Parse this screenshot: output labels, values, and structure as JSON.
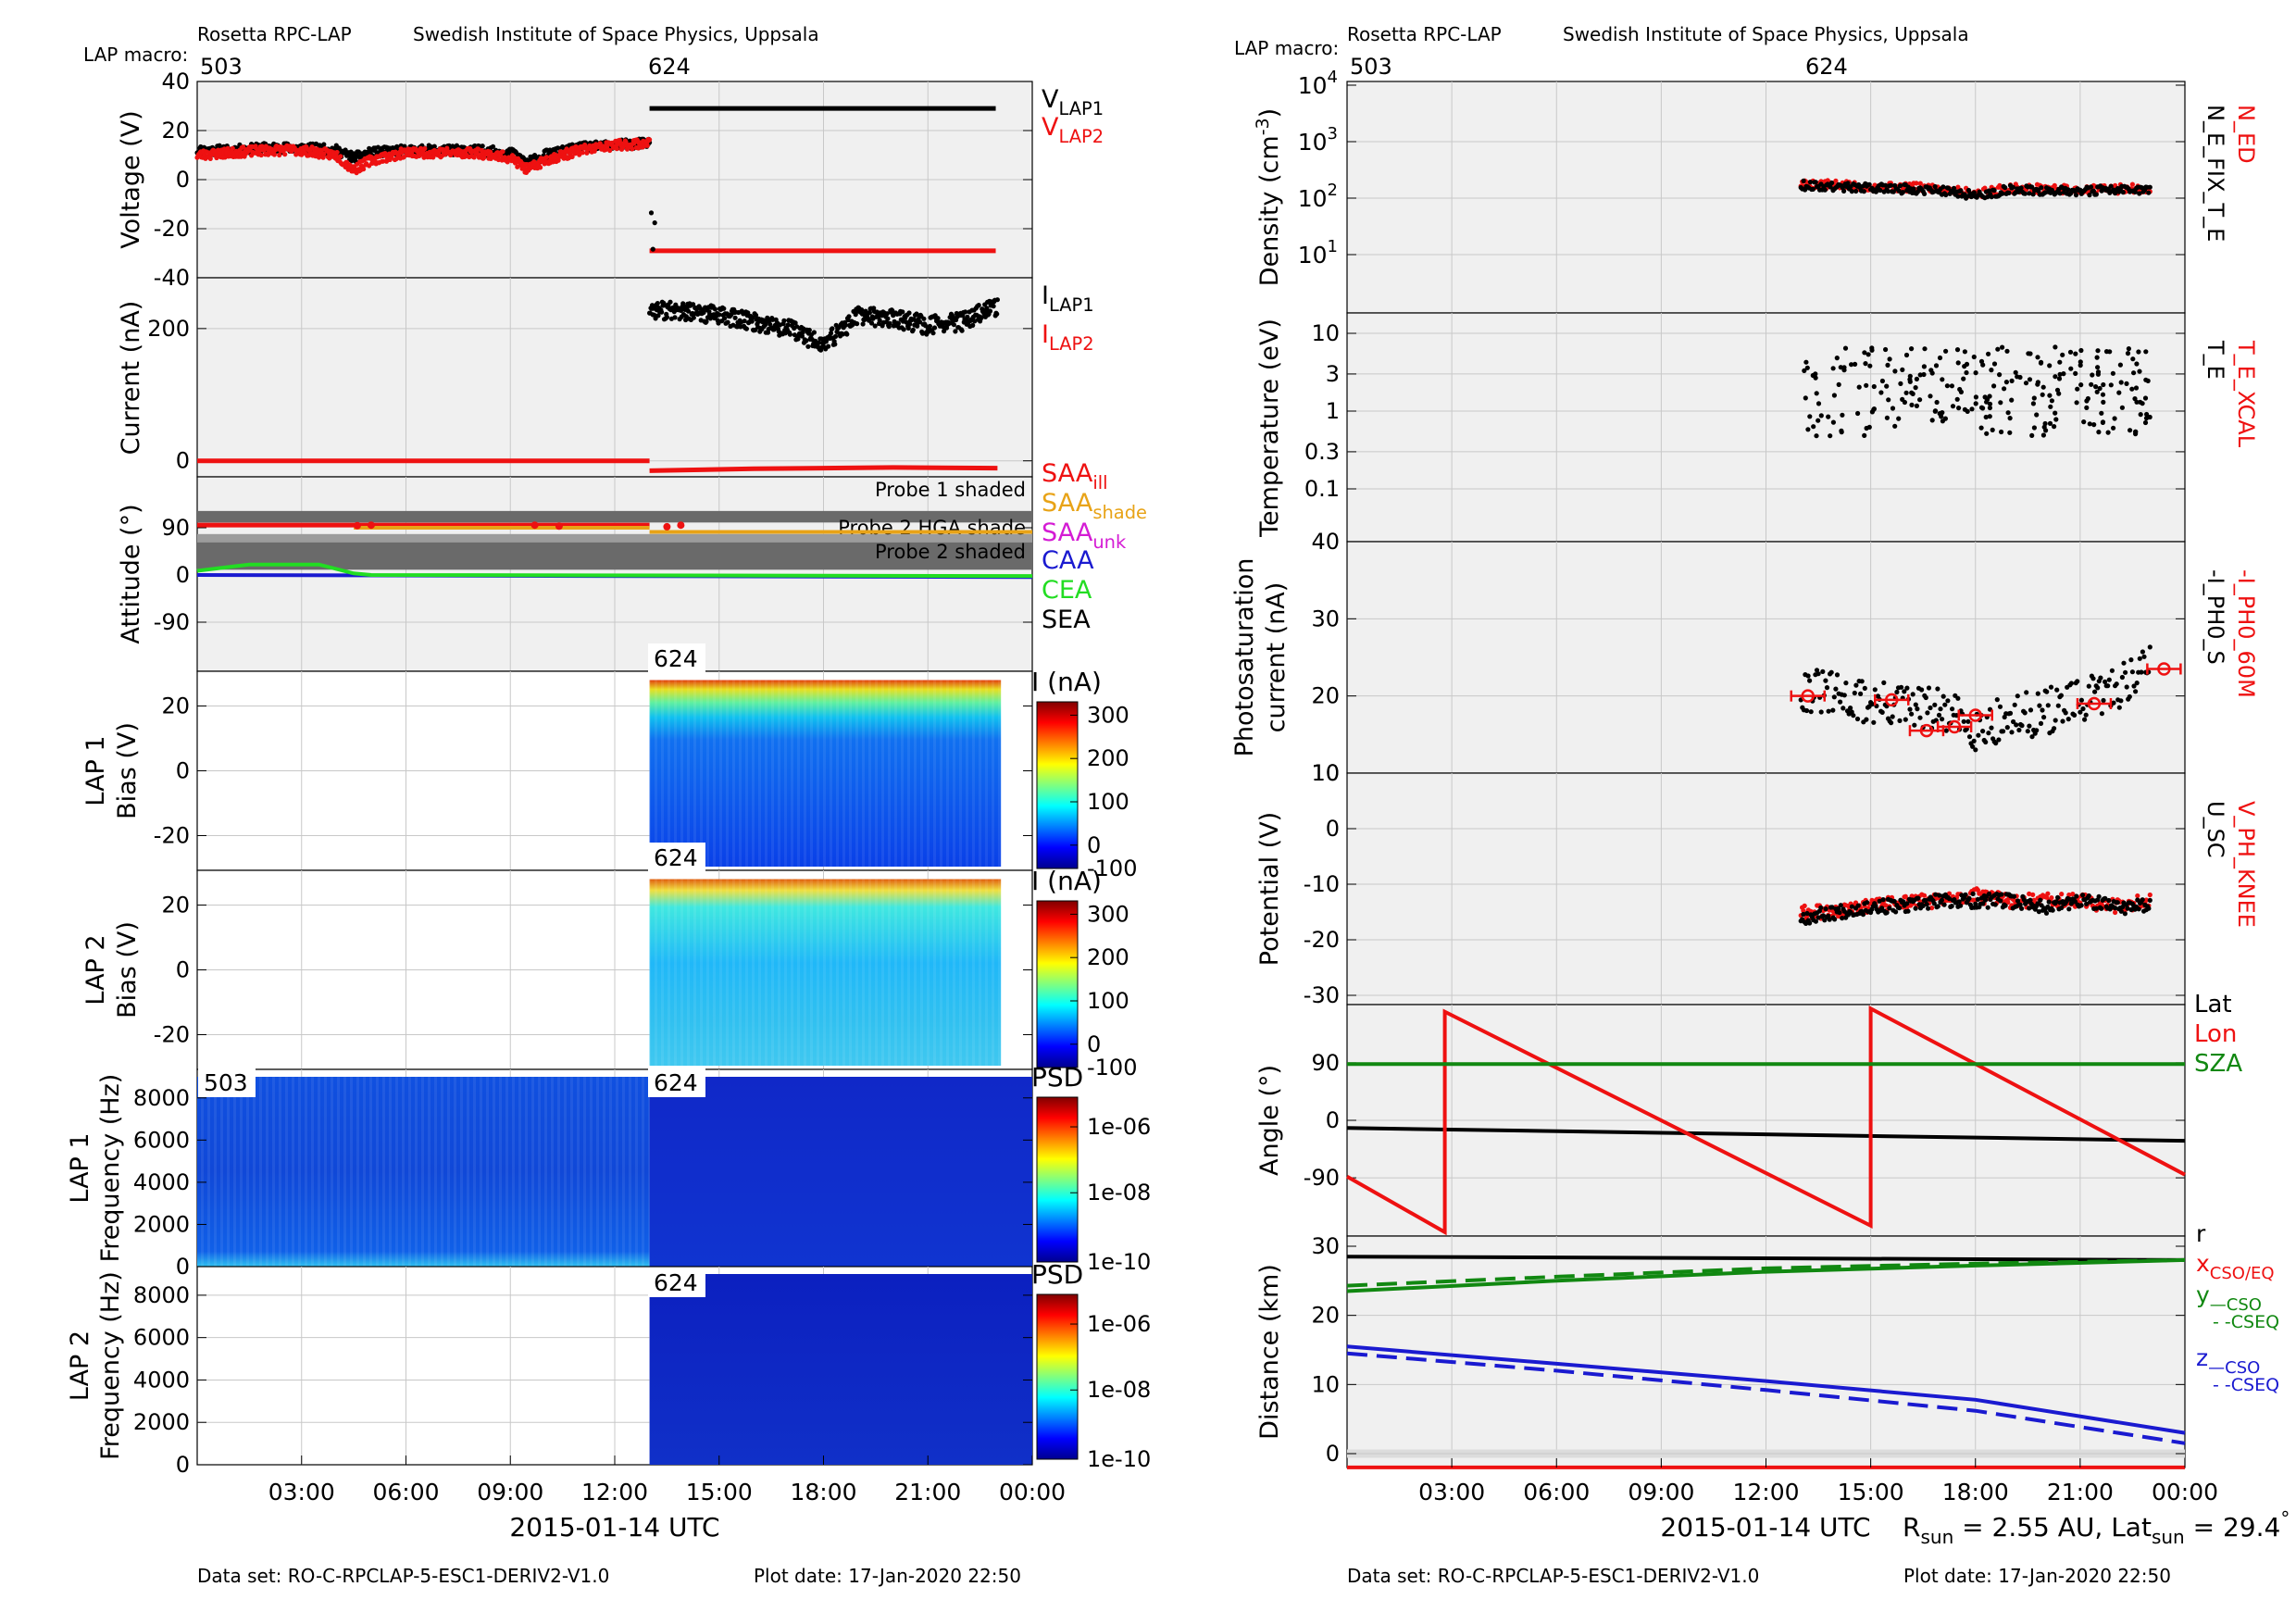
{
  "colors": {
    "black": "#000000",
    "red": "#ee1111",
    "orange": "#e8a317",
    "magenta": "#d41bd4",
    "blue": "#1a1ad0",
    "green": "#118811",
    "lime": "#22dd22",
    "panel": "#f0f0f0",
    "shade": "#6a6a6a",
    "shade_light": "#9c9c9c",
    "grid": "#c8c8c8"
  },
  "left": {
    "header": {
      "instrument": "Rosetta RPC-LAP",
      "institute": "Swedish Institute of Space Physics, Uppsala",
      "macro_label": "LAP macro:",
      "macro1": "503",
      "macro2": "624"
    },
    "xaxis": {
      "ticks": [
        "03:00",
        "06:00",
        "09:00",
        "12:00",
        "15:00",
        "18:00",
        "21:00",
        "00:00"
      ],
      "label": "2015-01-14 UTC"
    },
    "footer": {
      "dataset": "Data set: RO-C-RPCLAP-5-ESC1-DERIV2-V1.0",
      "plotdate": "Plot date: 17-Jan-2020 22:50"
    },
    "voltage": {
      "ylabel": "Voltage (V)",
      "ticks": [
        "40",
        "20",
        "0",
        "-20",
        "-40"
      ],
      "legend": [
        {
          "main": "V",
          "sub": "LAP1",
          "color": "#000000"
        },
        {
          "main": "V",
          "sub": "LAP2",
          "color": "#ee1111"
        }
      ]
    },
    "current": {
      "ylabel": "Current (nA)",
      "ticks": [
        "200",
        "0"
      ],
      "legend": [
        {
          "main": "I",
          "sub": "LAP1",
          "color": "#000000"
        },
        {
          "main": "I",
          "sub": "LAP2",
          "color": "#ee1111"
        }
      ]
    },
    "attitude": {
      "ylabel": "Attitude (°)",
      "ticks": [
        "90",
        "0",
        "-90"
      ],
      "bands": [
        "Probe 1 shaded",
        "Probe 2 HGA shade",
        "Probe 2 shaded"
      ],
      "legend": [
        {
          "main": "SAA",
          "sub": "ill",
          "color": "#ee1111"
        },
        {
          "main": "SAA",
          "sub": "shade",
          "color": "#e8a317"
        },
        {
          "main": "SAA",
          "sub": "unk",
          "color": "#d41bd4"
        },
        {
          "main": "CAA",
          "sub": "",
          "color": "#1a1ad0"
        },
        {
          "main": "CEA",
          "sub": "",
          "color": "#22dd22"
        },
        {
          "main": "SEA",
          "sub": "",
          "color": "#000000"
        }
      ]
    },
    "bias1": {
      "ylabel1": "LAP 1",
      "ylabel2": "Bias (V)",
      "ticks": [
        "20",
        "0",
        "-20"
      ],
      "macro": "624",
      "cbar_label": "I (nA)",
      "cbar_ticks": [
        "300",
        "200",
        "100",
        "0",
        "-100"
      ]
    },
    "bias2": {
      "ylabel1": "LAP 2",
      "ylabel2": "Bias (V)",
      "ticks": [
        "20",
        "0",
        "-20"
      ],
      "macro": "624",
      "cbar_label": "I (nA)",
      "cbar_ticks": [
        "300",
        "200",
        "100",
        "0",
        "-100"
      ]
    },
    "freq1": {
      "ylabel1": "LAP 1",
      "ylabel2": "Frequency (Hz)",
      "ticks": [
        "8000",
        "6000",
        "4000",
        "2000",
        "0"
      ],
      "macro_a": "503",
      "macro_b": "624",
      "cbar_label": "PSD",
      "cbar_ticks": [
        "1e-06",
        "1e-08",
        "1e-10"
      ]
    },
    "freq2": {
      "ylabel1": "LAP 2",
      "ylabel2": "Frequency (Hz)",
      "ticks": [
        "8000",
        "6000",
        "4000",
        "2000",
        "0"
      ],
      "macro": "624",
      "cbar_label": "PSD",
      "cbar_ticks": [
        "1e-06",
        "1e-08",
        "1e-10"
      ]
    }
  },
  "right": {
    "header": {
      "instrument": "Rosetta RPC-LAP",
      "institute": "Swedish Institute of Space Physics, Uppsala",
      "macro_label": "LAP macro:",
      "macro1": "503",
      "macro2": "624"
    },
    "xaxis": {
      "ticks": [
        "03:00",
        "06:00",
        "09:00",
        "12:00",
        "15:00",
        "18:00",
        "21:00",
        "00:00"
      ],
      "label": "2015-01-14 UTC"
    },
    "footer": {
      "dataset": "Data set: RO-C-RPCLAP-5-ESC1-DERIV2-V1.0",
      "plotdate": "Plot date: 17-Jan-2020 22:50"
    },
    "rsun": {
      "r": "R",
      "r_sub": "sun",
      "r_val": " = 2.55 AU, Lat",
      "lat_sub": "sun",
      "lat_val": " = 29.4",
      "deg": "°"
    },
    "density": {
      "ylabel_pre": "Density (cm",
      "ylabel_sup": "-3",
      "ylabel_post": ")",
      "ticks": [
        {
          "b": "10",
          "e": "4"
        },
        {
          "b": "10",
          "e": "3"
        },
        {
          "b": "10",
          "e": "2"
        },
        {
          "b": "10",
          "e": "1"
        }
      ],
      "legend_red": "N_ED",
      "legend_black": "N_E_FIX_T_E"
    },
    "temperature": {
      "ylabel": "Temperature (eV)",
      "ticks": [
        "10",
        "3",
        "1",
        "0.3",
        "0.1"
      ],
      "legend_red": "T_E_XCAL",
      "legend_black": "T_E"
    },
    "photo": {
      "ylabel1": "Photosaturation",
      "ylabel2": "current (nA)",
      "ticks": [
        "40",
        "30",
        "20",
        "10"
      ],
      "legend_red": "-I_PH0_60M",
      "legend_black": "-I_PH0_S"
    },
    "potential": {
      "ylabel": "Potential (V)",
      "ticks": [
        "10",
        "0",
        "-10",
        "-20",
        "-30"
      ],
      "legend_red": "V_PH_KNEE",
      "legend_black": "U_SC"
    },
    "angle": {
      "ylabel": "Angle (°)",
      "ticks": [
        "90",
        "0",
        "-90"
      ],
      "legend": [
        {
          "text": "Lat",
          "color": "#000000"
        },
        {
          "text": "Lon",
          "color": "#ee1111"
        },
        {
          "text": "SZA",
          "color": "#118811"
        }
      ]
    },
    "distance": {
      "ylabel": "Distance (km)",
      "ticks": [
        "30",
        "20",
        "10",
        "0"
      ],
      "legend": [
        {
          "main": "r",
          "sub": "",
          "color": "#000000"
        },
        {
          "main": "x",
          "sub": "CSO/EQ",
          "color": "#ee1111"
        },
        {
          "main": "y",
          "sub": "—CSO",
          "color": "#118811"
        },
        {
          "main": "",
          "sub": "- -CSEQ",
          "color": "#118811"
        },
        {
          "main": "z",
          "sub": "—CSO",
          "color": "#1a1ad0"
        },
        {
          "main": "",
          "sub": "- -CSEQ",
          "color": "#1a1ad0"
        }
      ]
    }
  },
  "chart_data": [
    {
      "type": "line",
      "panel": "Voltage",
      "x_range_hours": [
        0,
        24
      ],
      "ylim": [
        -40,
        40
      ],
      "series": [
        {
          "name": "V_LAP1",
          "segments": [
            {
              "x": [
                0,
                1,
                2,
                3,
                4,
                4.5,
                5,
                6,
                7,
                8,
                9,
                9.5,
                10,
                11,
                12,
                13
              ],
              "y": [
                12,
                12,
                13,
                13,
                12,
                9,
                11,
                12,
                12,
                12,
                11,
                7,
                10,
                13,
                14,
                15
              ]
            },
            {
              "x": [
                13,
                24
              ],
              "y": [
                29,
                29
              ]
            }
          ]
        },
        {
          "name": "V_LAP2",
          "segments": [
            {
              "x": [
                0,
                1,
                2,
                3,
                4,
                4.5,
                5,
                6,
                7,
                8,
                9,
                9.5,
                10,
                11,
                12,
                13
              ],
              "y": [
                10,
                11,
                12,
                12,
                10,
                4,
                8,
                11,
                11,
                11,
                9,
                4,
                8,
                12,
                14,
                15
              ]
            },
            {
              "x": [
                13,
                24
              ],
              "y": [
                -29,
                -29
              ]
            }
          ]
        }
      ]
    },
    {
      "type": "scatter",
      "panel": "Current",
      "x_range_hours": [
        0,
        24
      ],
      "series": [
        {
          "name": "I_LAP1",
          "x": [
            13,
            14,
            15,
            16,
            17,
            18,
            19,
            20,
            21,
            22,
            23
          ],
          "y": [
            230,
            225,
            220,
            210,
            200,
            175,
            220,
            215,
            205,
            210,
            235
          ]
        },
        {
          "name": "I_LAP2",
          "x": [
            0,
            13,
            13.5,
            24
          ],
          "y": [
            0,
            0,
            -15,
            -10
          ]
        }
      ]
    },
    {
      "type": "line",
      "panel": "Attitude",
      "x_range_hours": [
        0,
        24
      ],
      "ylim": [
        -180,
        180
      ],
      "series": [
        {
          "name": "SAA_ill",
          "x": [
            0,
            13
          ],
          "y": [
            95,
            95
          ]
        },
        {
          "name": "SAA_shade",
          "x": [
            4.5,
            24
          ],
          "y": [
            90,
            80
          ]
        },
        {
          "name": "CAA",
          "x": [
            0,
            24
          ],
          "y": [
            0,
            -5
          ]
        },
        {
          "name": "CEA",
          "x": [
            0,
            1.5,
            3.5,
            4.5,
            5,
            24
          ],
          "y": [
            8,
            20,
            20,
            3,
            0,
            -2
          ]
        }
      ]
    },
    {
      "type": "heatmap",
      "panel": "LAP 1 Bias",
      "x_range_hours": [
        13,
        24
      ],
      "ylim": [
        -25,
        25
      ],
      "z_label": "I (nA)",
      "zlim": [
        -100,
        300
      ]
    },
    {
      "type": "heatmap",
      "panel": "LAP 2 Bias",
      "x_range_hours": [
        13,
        24
      ],
      "ylim": [
        -25,
        25
      ],
      "z_label": "I (nA)",
      "zlim": [
        -100,
        300
      ]
    },
    {
      "type": "heatmap",
      "panel": "LAP 1 Frequency",
      "x_range_hours": [
        0,
        24
      ],
      "ylim": [
        0,
        9000
      ],
      "z_label": "PSD"
    },
    {
      "type": "heatmap",
      "panel": "LAP 2 Frequency",
      "x_range_hours": [
        13,
        24
      ],
      "ylim": [
        0,
        9000
      ],
      "z_label": "PSD"
    },
    {
      "type": "scatter",
      "panel": "Density",
      "yscale": "log",
      "x_range_hours": [
        13,
        24
      ],
      "series": [
        {
          "name": "N_ED",
          "x": [
            13,
            15,
            17,
            18,
            19,
            21,
            23
          ],
          "y": [
            180,
            160,
            150,
            120,
            150,
            140,
            150
          ]
        },
        {
          "name": "N_E_FIX_T_E",
          "x": [
            13,
            15,
            17,
            18,
            19,
            21,
            23
          ],
          "y": [
            170,
            150,
            140,
            110,
            140,
            135,
            145
          ]
        }
      ]
    },
    {
      "type": "scatter",
      "panel": "Temperature",
      "yscale": "log",
      "x_range_hours": [
        13,
        24
      ],
      "series": [
        {
          "name": "T_E",
          "y_typical": 4
        }
      ]
    },
    {
      "type": "scatter",
      "panel": "Photosaturation",
      "x_range_hours": [
        13,
        24
      ],
      "ylim": [
        10,
        40
      ],
      "series": [
        {
          "name": "-I_PH0_S",
          "x": [
            13,
            15,
            17,
            18,
            19,
            20,
            21,
            22,
            23
          ],
          "y": [
            21,
            19,
            18,
            16,
            17,
            18,
            19,
            21,
            24
          ]
        },
        {
          "name": "-I_PH0_60M",
          "x": [
            13.2,
            15.6,
            16.6,
            17.4,
            18,
            21.4,
            23.4
          ],
          "y": [
            20,
            19.5,
            15.5,
            16,
            17.5,
            19,
            23.5
          ]
        }
      ]
    },
    {
      "type": "scatter",
      "panel": "Potential",
      "x_range_hours": [
        13,
        24
      ],
      "ylim": [
        -32,
        12
      ],
      "series": [
        {
          "name": "V_PH_KNEE",
          "x": [
            13,
            14,
            15,
            16,
            17,
            18,
            19,
            20,
            21,
            22,
            23
          ],
          "y": [
            -15,
            -15,
            -14,
            -13,
            -13,
            -12,
            -13,
            -13,
            -13,
            -14,
            -13
          ]
        },
        {
          "name": "U_SC",
          "x": [
            13,
            14,
            15,
            16,
            17,
            18,
            19,
            20,
            21,
            22,
            23
          ],
          "y": [
            -16,
            -15,
            -14,
            -14,
            -13,
            -13,
            -13,
            -14,
            -13,
            -14,
            -14
          ]
        }
      ]
    },
    {
      "type": "line",
      "panel": "Angle",
      "x_range_hours": [
        0,
        24
      ],
      "ylim": [
        -180,
        180
      ],
      "series": [
        {
          "name": "Lat",
          "x": [
            0,
            24
          ],
          "y": [
            -12,
            -32
          ]
        },
        {
          "name": "Lon",
          "x": [
            0,
            2.8,
            2.8,
            15,
            15,
            24
          ],
          "y": [
            -88,
            -175,
            170,
            -165,
            175,
            -85
          ]
        },
        {
          "name": "SZA",
          "x": [
            0,
            24
          ],
          "y": [
            88,
            88
          ]
        }
      ]
    },
    {
      "type": "line",
      "panel": "Distance",
      "x_range_hours": [
        0,
        24
      ],
      "ylim": [
        -2,
        30
      ],
      "series": [
        {
          "name": "r",
          "x": [
            0,
            24
          ],
          "y": [
            28.5,
            28
          ]
        },
        {
          "name": "x",
          "x": [
            0,
            24
          ],
          "y": [
            -2,
            -2
          ]
        },
        {
          "name": "y CSO",
          "x": [
            0,
            6,
            12,
            18,
            24
          ],
          "y": [
            23.5,
            25,
            26.3,
            27.2,
            28
          ]
        },
        {
          "name": "y CSEQ",
          "x": [
            0,
            6,
            12,
            18,
            24
          ],
          "y": [
            24.3,
            25.6,
            26.8,
            27.5,
            28
          ]
        },
        {
          "name": "z CSO",
          "x": [
            0,
            6,
            12,
            18,
            24
          ],
          "y": [
            15.5,
            13,
            10.5,
            7.8,
            3
          ]
        },
        {
          "name": "z CSEQ",
          "x": [
            0,
            6,
            12,
            18,
            24
          ],
          "y": [
            14.5,
            12,
            9.2,
            6.2,
            1.5
          ]
        }
      ]
    }
  ]
}
